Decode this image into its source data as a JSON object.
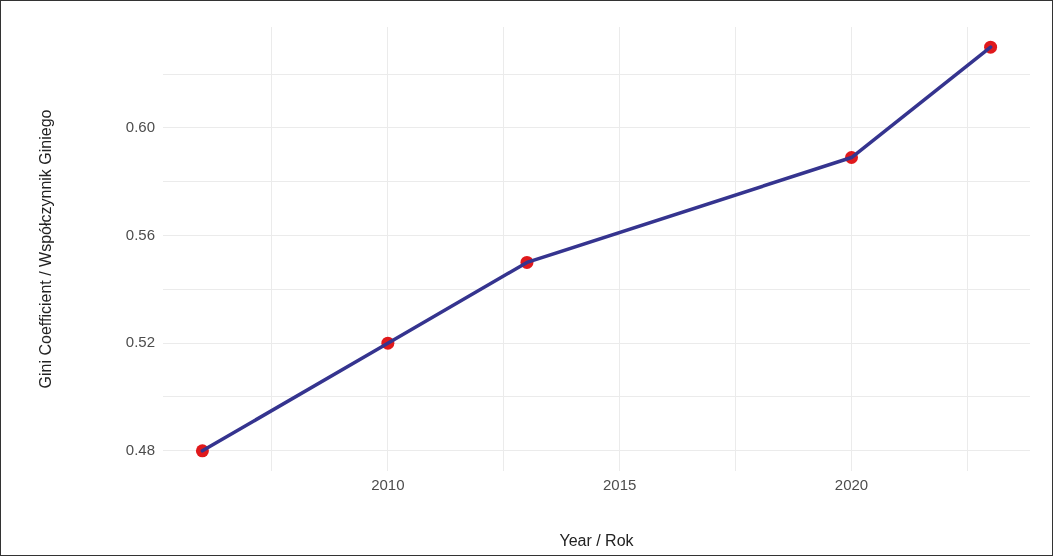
{
  "chart_data": {
    "type": "line",
    "xlabel": "Year / Rok",
    "ylabel": "Gini Coefficient / Współczynnik Giniego",
    "x": [
      2006,
      2010,
      2013,
      2020,
      2023
    ],
    "series": [
      {
        "type": "line",
        "color": "#35348f",
        "marker": "none",
        "values": [
          0.48,
          0.52,
          0.55,
          0.589,
          0.63
        ]
      },
      {
        "type": "scatter",
        "color": "#e0191c",
        "marker": "circle",
        "values": [
          0.48,
          0.52,
          0.55,
          0.589,
          0.63
        ]
      }
    ],
    "xlim": [
      2005.15,
      2023.85
    ],
    "xticks": [
      {
        "value": 2007.5,
        "label": null
      },
      2010,
      {
        "value": 2012.5,
        "label": null
      },
      2015,
      {
        "value": 2017.5,
        "label": null
      },
      2020,
      {
        "value": 2022.5,
        "label": null
      }
    ],
    "ylim": [
      0.4725,
      0.6375
    ],
    "yticks": [
      0.48,
      {
        "value": 0.5,
        "label": null
      },
      0.52,
      {
        "value": 0.54,
        "label": null
      },
      0.56,
      {
        "value": 0.58,
        "label": null
      },
      {
        "value": 0.6,
        "label": "0.60"
      },
      {
        "value": 0.62,
        "label": null
      }
    ],
    "grid": true,
    "legend": false
  }
}
